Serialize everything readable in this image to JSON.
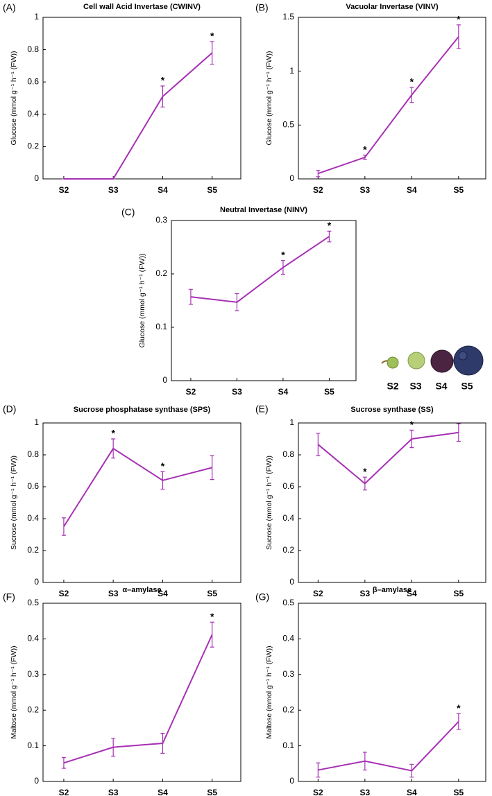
{
  "chart_data": [
    {
      "type": "line",
      "panel": "(A)",
      "title": "Cell wall Acid Invertase (CWINV)",
      "ylabel": "Glucose (mmol g⁻¹ h⁻¹ (FW))",
      "categories": [
        "S2",
        "S3",
        "S4",
        "S5"
      ],
      "values": [
        0,
        0,
        0.51,
        0.78
      ],
      "errors": [
        0,
        0,
        0.065,
        0.07
      ],
      "significance": [
        null,
        null,
        "*",
        "*"
      ],
      "ylim": [
        0,
        1
      ],
      "yticks": [
        0,
        0.2,
        0.4,
        0.6,
        0.8,
        1
      ],
      "color": "#a630b4"
    },
    {
      "type": "line",
      "panel": "(B)",
      "title": "Vacuolar Invertase (VINV)",
      "ylabel": "Glucose (mmol g⁻¹ h⁻¹ (FW))",
      "categories": [
        "S2",
        "S3",
        "S4",
        "S5"
      ],
      "values": [
        0.05,
        0.2,
        0.78,
        1.32
      ],
      "errors": [
        0.03,
        0.02,
        0.07,
        0.11
      ],
      "significance": [
        null,
        "*",
        "*",
        "*"
      ],
      "ylim": [
        0,
        1.5
      ],
      "yticks": [
        0,
        0.5,
        1,
        1.5
      ],
      "color": "#a630b4"
    },
    {
      "type": "line",
      "panel": "(C)",
      "title": "Neutral Invertase (NINV)",
      "ylabel": "Glucose (mmol g⁻¹ h⁻¹ (FW))",
      "categories": [
        "S2",
        "S3",
        "S4",
        "S5"
      ],
      "values": [
        0.157,
        0.147,
        0.212,
        0.27
      ],
      "errors": [
        0.014,
        0.016,
        0.013,
        0.01
      ],
      "significance": [
        null,
        null,
        "*",
        "*"
      ],
      "ylim": [
        0,
        0.3
      ],
      "yticks": [
        0,
        0.1,
        0.2,
        0.3
      ],
      "color": "#a630b4"
    },
    {
      "type": "line",
      "panel": "(D)",
      "title": "Sucrose phosphatase synthase (SPS)",
      "ylabel": "Sucrose (mmol g⁻¹ h⁻¹ (FW))",
      "categories": [
        "S2",
        "S3",
        "S4",
        "S5"
      ],
      "values": [
        0.35,
        0.84,
        0.64,
        0.72
      ],
      "errors": [
        0.055,
        0.06,
        0.055,
        0.075
      ],
      "significance": [
        null,
        "*",
        "*",
        null
      ],
      "ylim": [
        0,
        1
      ],
      "yticks": [
        0,
        0.2,
        0.4,
        0.6,
        0.8,
        1
      ],
      "color": "#a630b4"
    },
    {
      "type": "line",
      "panel": "(E)",
      "title": "Sucrose synthase (SS)",
      "ylabel": "Sucrose (mmol g⁻¹ h⁻¹ (FW))",
      "categories": [
        "S2",
        "S3",
        "S4",
        "S5"
      ],
      "values": [
        0.865,
        0.62,
        0.9,
        0.94
      ],
      "errors": [
        0.07,
        0.04,
        0.055,
        0.055
      ],
      "significance": [
        null,
        "*",
        "*",
        null
      ],
      "ylim": [
        0,
        1
      ],
      "yticks": [
        0,
        0.2,
        0.4,
        0.6,
        0.8,
        1
      ],
      "color": "#a630b4"
    },
    {
      "type": "line",
      "panel": "(F)",
      "title": "α–amylase",
      "ylabel": "Maltose (mmol g⁻¹ h⁻¹ (FW))",
      "categories": [
        "S2",
        "S3",
        "S4",
        "S5"
      ],
      "values": [
        0.052,
        0.096,
        0.107,
        0.412
      ],
      "errors": [
        0.015,
        0.025,
        0.028,
        0.035
      ],
      "significance": [
        null,
        null,
        null,
        "*"
      ],
      "ylim": [
        0,
        0.5
      ],
      "yticks": [
        0,
        0.1,
        0.2,
        0.3,
        0.4,
        0.5
      ],
      "color": "#a630b4"
    },
    {
      "type": "line",
      "panel": "(G)",
      "title": "β–amylase",
      "ylabel": "Maltose (mmol g⁻¹ h⁻¹ (FW))",
      "categories": [
        "S2",
        "S3",
        "S4",
        "S5"
      ],
      "values": [
        0.032,
        0.057,
        0.03,
        0.168
      ],
      "errors": [
        0.02,
        0.025,
        0.018,
        0.022
      ],
      "significance": [
        null,
        null,
        null,
        "*"
      ],
      "ylim": [
        0,
        0.5
      ],
      "yticks": [
        0,
        0.1,
        0.2,
        0.3,
        0.4,
        0.5
      ],
      "color": "#a630b4"
    }
  ],
  "illustration": {
    "labels": [
      "S2",
      "S3",
      "S4",
      "S5"
    ]
  }
}
